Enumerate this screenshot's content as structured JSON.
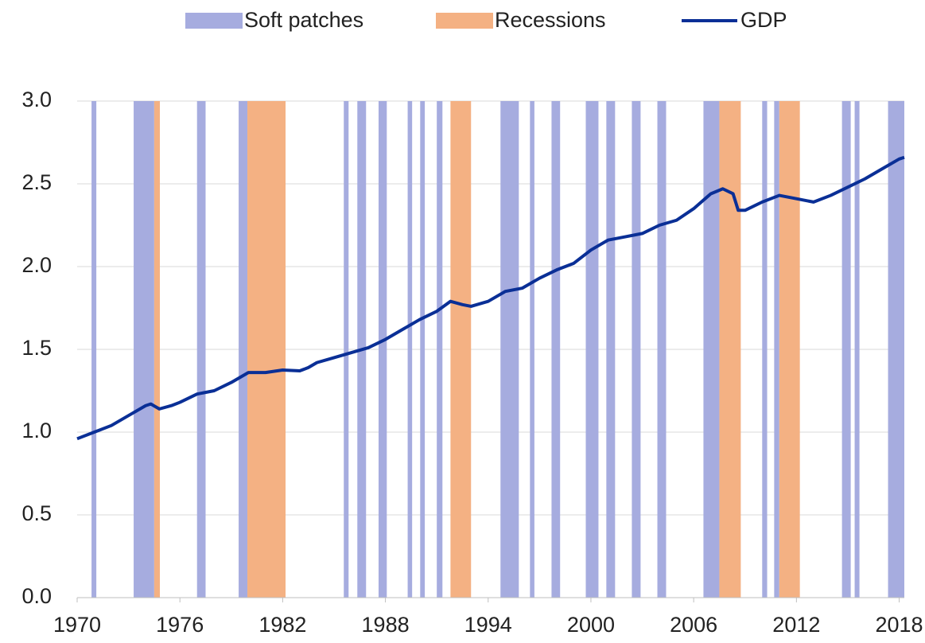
{
  "chart_data": {
    "type": "line",
    "x": [
      1970,
      1971,
      1972,
      1973,
      1974,
      1974.3,
      1974.8,
      1975.5,
      1976,
      1977,
      1978,
      1979,
      1980,
      1981,
      1982,
      1983,
      1983.5,
      1984,
      1985,
      1986,
      1987,
      1988,
      1989,
      1990,
      1991,
      1991.8,
      1992.5,
      1993,
      1994,
      1995,
      1996,
      1997,
      1998,
      1999,
      2000,
      2001,
      2002,
      2003,
      2004,
      2005,
      2006,
      2007,
      2007.7,
      2008.3,
      2008.6,
      2009,
      2010,
      2011,
      2012,
      2013,
      2014,
      2015,
      2016,
      2017,
      2018,
      2018.3
    ],
    "series": [
      {
        "name": "GDP",
        "color": "#0a2f96",
        "values": [
          0.96,
          1.0,
          1.04,
          1.1,
          1.16,
          1.17,
          1.14,
          1.16,
          1.18,
          1.23,
          1.25,
          1.3,
          1.36,
          1.36,
          1.375,
          1.37,
          1.39,
          1.42,
          1.45,
          1.48,
          1.51,
          1.56,
          1.62,
          1.68,
          1.73,
          1.79,
          1.77,
          1.76,
          1.79,
          1.85,
          1.87,
          1.93,
          1.98,
          2.02,
          2.1,
          2.16,
          2.18,
          2.2,
          2.25,
          2.28,
          2.35,
          2.44,
          2.47,
          2.44,
          2.34,
          2.34,
          2.39,
          2.43,
          2.41,
          2.39,
          2.43,
          2.48,
          2.53,
          2.59,
          2.65,
          2.66
        ]
      }
    ],
    "bands": [
      {
        "name": "Soft patches",
        "color": "#a6acdf",
        "periods": [
          [
            1970.84,
            1971.12
          ],
          [
            1973.3,
            1974.5
          ],
          [
            1977.0,
            1977.5
          ],
          [
            1979.43,
            1979.94
          ],
          [
            1985.57,
            1985.85
          ],
          [
            1986.36,
            1986.87
          ],
          [
            1987.6,
            1988.08
          ],
          [
            1989.3,
            1989.56
          ],
          [
            1990.03,
            1990.3
          ],
          [
            1991.0,
            1991.33
          ],
          [
            1994.72,
            1995.79
          ],
          [
            1996.44,
            1996.7
          ],
          [
            1997.7,
            1998.2
          ],
          [
            1999.7,
            2000.44
          ],
          [
            2000.9,
            2001.41
          ],
          [
            2002.39,
            2002.9
          ],
          [
            2003.88,
            2004.39
          ],
          [
            2006.57,
            2007.5
          ],
          [
            2010.0,
            2010.29
          ],
          [
            2010.7,
            2011.0
          ],
          [
            2014.66,
            2015.17
          ],
          [
            2015.4,
            2015.68
          ],
          [
            2017.35,
            2018.3
          ]
        ]
      },
      {
        "name": "Recessions",
        "color": "#f4b183",
        "periods": [
          [
            1974.5,
            1974.83
          ],
          [
            1979.94,
            1982.17
          ],
          [
            1991.8,
            1993.0
          ],
          [
            2007.5,
            2008.75
          ],
          [
            2011.0,
            2012.2
          ]
        ]
      }
    ],
    "xlim": [
      1970,
      2018.3
    ],
    "xticks": [
      1970,
      1976,
      1982,
      1988,
      1994,
      2000,
      2006,
      2012,
      2018
    ],
    "ylim": [
      0,
      3
    ],
    "yticks": [
      {
        "value": 0,
        "label": "0.0"
      },
      0.5,
      {
        "value": 1,
        "label": "1.0"
      },
      1.5,
      {
        "value": 2,
        "label": "2.0"
      },
      2.5,
      {
        "value": 3,
        "label": "3.0"
      }
    ],
    "grid": true,
    "legend": "top"
  }
}
